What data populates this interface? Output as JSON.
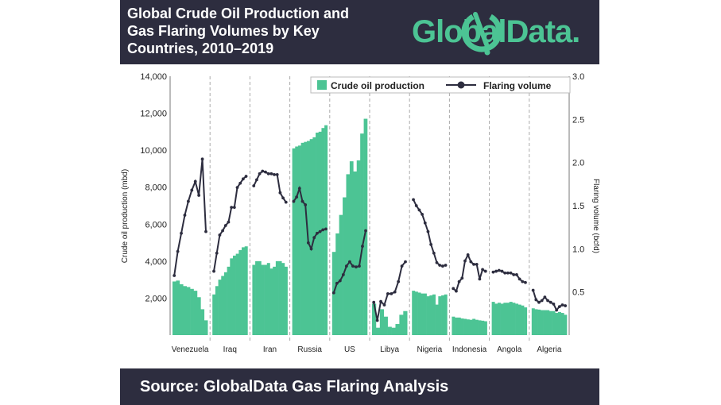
{
  "header": {
    "title_lines": [
      "Global Crude Oil Production and",
      "Gas Flaring Volumes by Key",
      "Countries, 2010–2019"
    ],
    "logo_text": "GlobalData."
  },
  "footer": {
    "source": "Source:  GlobalData Gas Flaring Analysis"
  },
  "colors": {
    "bar": "#4cc494",
    "line": "#2d2d3f",
    "header_bg": "#2d2d3f",
    "logo": "#4cc494"
  },
  "chart_data": {
    "type": "bar+line",
    "categories": [
      "Venezuela",
      "Iraq",
      "Iran",
      "Russia",
      "US",
      "Libya",
      "Nigeria",
      "Indonesia",
      "Angola",
      "Algeria"
    ],
    "ylabel": "Crude oil production (mbd)",
    "y2label": "Flaring volume (bcfd)",
    "ylim": [
      0,
      14000
    ],
    "y2lim": [
      0,
      3.0
    ],
    "yticks": [
      "2,000",
      "4,000",
      "6,000",
      "8,000",
      "10,000",
      "12,000",
      "14,000"
    ],
    "y2ticks": [
      "0.5",
      "1.0",
      "1.5",
      "2.0",
      "2.5",
      "3.0"
    ],
    "legend_position": "top-right",
    "series": [
      {
        "name": "Crude oil production",
        "kind": "bar",
        "values": [
          [
            2900,
            2950,
            2750,
            2650,
            2600,
            2500,
            2400,
            2050,
            1400,
            800
          ],
          [
            2200,
            2650,
            3000,
            3200,
            3400,
            3700,
            4150,
            4300,
            4400,
            4600,
            4750,
            4800
          ],
          [
            3800,
            4000,
            4000,
            3800,
            3800,
            3900,
            3600,
            3700,
            4000,
            4000,
            3900,
            3700
          ],
          [
            10100,
            10200,
            10250,
            10400,
            10450,
            10500,
            10600,
            10700,
            10950,
            11000,
            11200,
            11350
          ],
          [
            4500,
            5500,
            6500,
            7450,
            8700,
            9400,
            8850,
            9450,
            10900,
            11700
          ],
          [
            1700,
            400,
            1400,
            1000,
            450,
            400,
            600,
            1100,
            1300
          ],
          [
            2400,
            2350,
            2300,
            2250,
            2250,
            2100,
            2150,
            2200,
            1650,
            2100,
            2150,
            2200
          ],
          [
            1000,
            950,
            950,
            900,
            880,
            850,
            830,
            880,
            830,
            800,
            780,
            750
          ],
          [
            1800,
            1700,
            1750,
            1700,
            1750,
            1750,
            1800,
            1750,
            1700,
            1650,
            1600,
            1500
          ],
          [
            1450,
            1400,
            1380,
            1350,
            1350,
            1350,
            1300,
            1300,
            1200,
            1250,
            1200,
            1100
          ]
        ]
      },
      {
        "name": "Flaring volume",
        "kind": "line",
        "values": [
          [
            0.69,
            0.97,
            1.18,
            1.39,
            1.55,
            1.68,
            1.78,
            1.62,
            2.04,
            1.2
          ],
          [
            0.74,
            0.95,
            1.16,
            1.21,
            1.27,
            1.31,
            1.48,
            1.48,
            1.71,
            1.76,
            1.81,
            1.84
          ],
          [
            1.73,
            1.8,
            1.87,
            1.9,
            1.89,
            1.87,
            1.87,
            1.86,
            1.86,
            1.65,
            1.59,
            1.54
          ],
          [
            1.55,
            1.6,
            1.7,
            1.55,
            1.51,
            1.07,
            1.0,
            1.13,
            1.18,
            1.2,
            1.22,
            1.23
          ],
          [
            0.49,
            0.6,
            0.63,
            0.7,
            0.8,
            0.85,
            0.8,
            0.79,
            0.8,
            1.03,
            1.21
          ],
          [
            0.38,
            0.17,
            0.39,
            0.35,
            0.48,
            0.48,
            0.5,
            0.62,
            0.8,
            0.85
          ],
          [
            1.57,
            1.5,
            1.45,
            1.4,
            1.3,
            1.2,
            1.05,
            0.95,
            0.84,
            0.81,
            0.8,
            0.81
          ],
          [
            0.54,
            0.51,
            0.62,
            0.66,
            0.86,
            0.93,
            0.85,
            0.82,
            0.82,
            0.65,
            0.76,
            0.74
          ],
          [
            0.73,
            0.74,
            0.75,
            0.74,
            0.72,
            0.72,
            0.72,
            0.7,
            0.7,
            0.65,
            0.62,
            0.61
          ],
          [
            0.52,
            0.41,
            0.38,
            0.4,
            0.44,
            0.4,
            0.38,
            0.36,
            0.29,
            0.33,
            0.35,
            0.34
          ]
        ]
      }
    ]
  }
}
